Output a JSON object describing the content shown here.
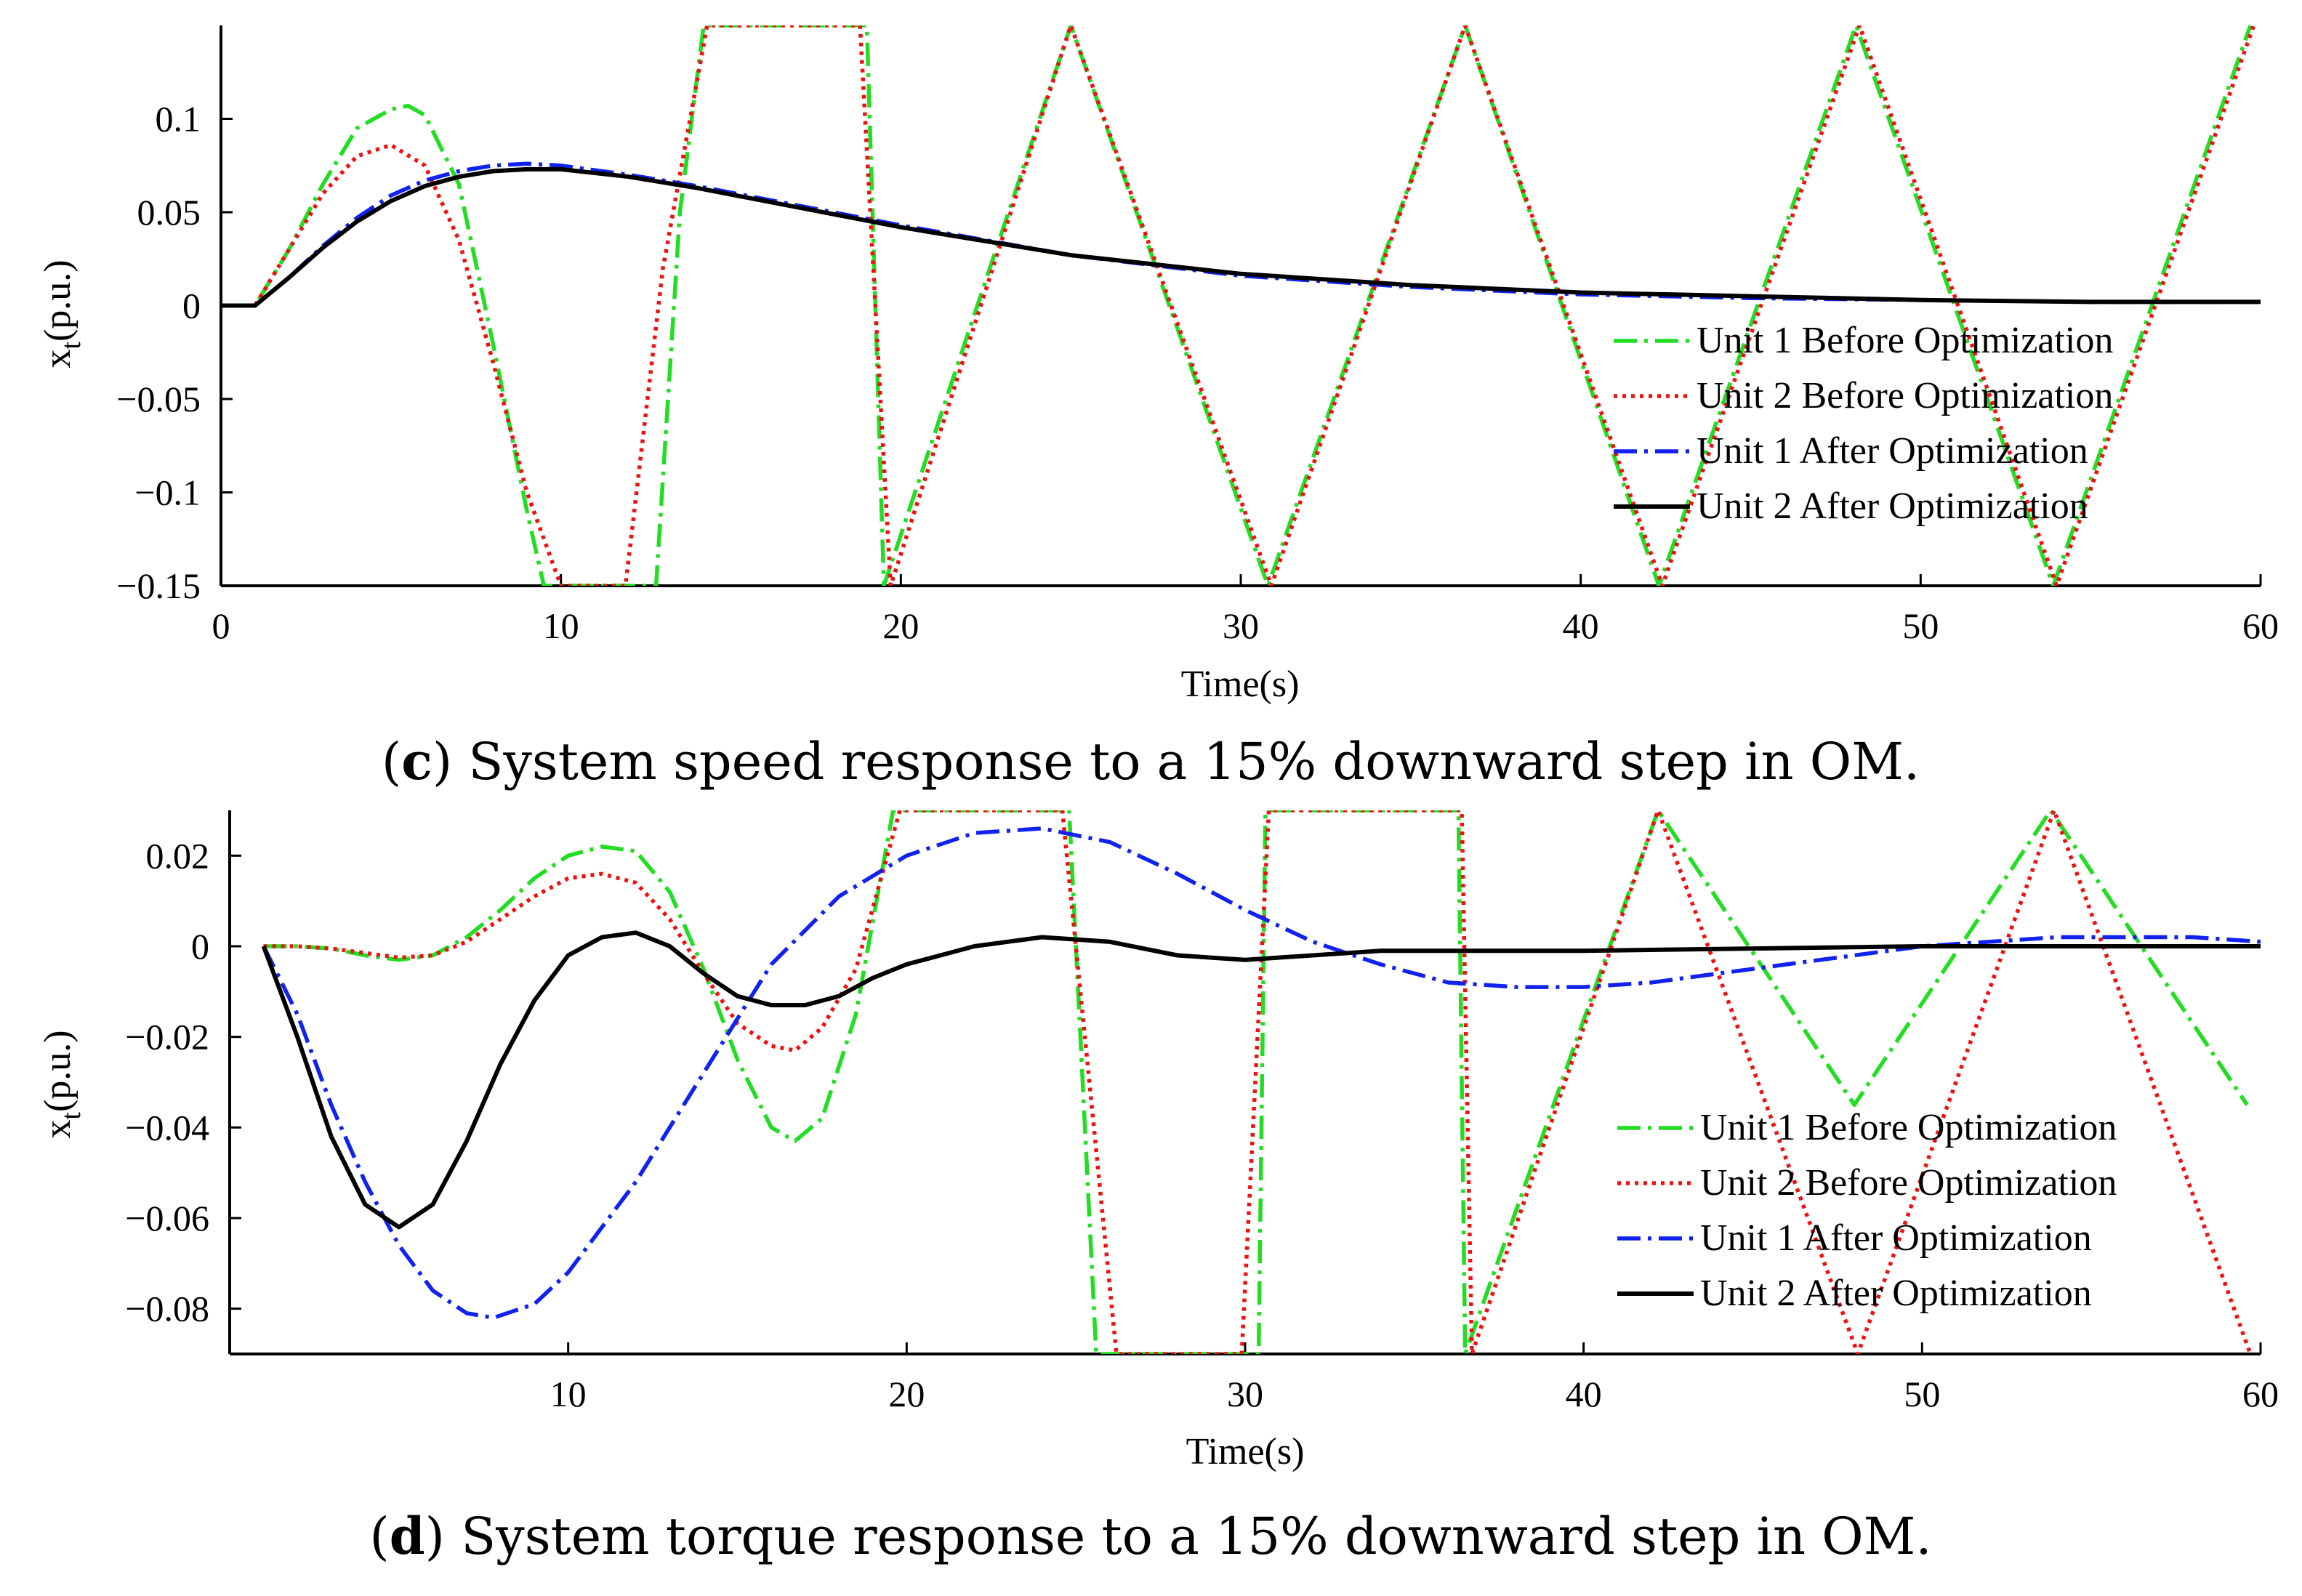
{
  "charts": [
    {
      "id": "c",
      "ylabel_main": "x",
      "ylabel_sub": "t",
      "ylabel_tail": "(p.u.)",
      "xlabel": "Time(s)",
      "caption_open": "(",
      "caption_letter": "c",
      "caption_rest": ") System speed response to a 15% downward step in OM."
    },
    {
      "id": "d",
      "ylabel_main": "x",
      "ylabel_sub": "t",
      "ylabel_tail": "(p.u.)",
      "xlabel": "Time(s)",
      "caption_open": "(",
      "caption_letter": "d",
      "caption_rest": ") System torque response to a 15% downward step in OM."
    }
  ],
  "chart_data": [
    {
      "type": "line",
      "xlabel": "Time(s)",
      "ylabel": "xt(p.u.)",
      "xlim": [
        0,
        60
      ],
      "ylim": [
        -0.15,
        0.15
      ],
      "xticks": [
        0,
        10,
        20,
        30,
        40,
        50,
        60
      ],
      "xtick_labels": [
        "0",
        "10",
        "20",
        "30",
        "40",
        "50",
        "60"
      ],
      "yticks": [
        -0.15,
        -0.1,
        -0.05,
        0,
        0.05,
        0.1
      ],
      "ytick_labels": [
        "−0.15",
        "−0.1",
        "−0.05",
        "0",
        "0.05",
        "0.1"
      ],
      "legend_position": "bottom-right",
      "series": [
        {
          "name": "Unit 1 Before Optimization",
          "color": "#22dd22",
          "style": "dash-dot",
          "x": [
            0,
            1,
            2,
            3,
            4,
            5,
            5.5,
            6,
            7,
            8,
            9,
            9.5,
            12.8,
            13.5,
            14.2,
            19.0,
            19.5,
            25.0,
            30.8,
            36.6,
            42.3,
            48.1,
            53.9,
            59.7
          ],
          "y": [
            0,
            0,
            0.03,
            0.065,
            0.095,
            0.105,
            0.107,
            0.102,
            0.065,
            -0.02,
            -0.11,
            -0.15,
            -0.15,
            0.05,
            0.15,
            0.15,
            -0.15,
            0.15,
            -0.15,
            0.15,
            -0.15,
            0.15,
            -0.15,
            0.15
          ]
        },
        {
          "name": "Unit 2 Before Optimization",
          "color": "#ee1111",
          "style": "dotted",
          "x": [
            0,
            1,
            2,
            3,
            4,
            5,
            6,
            7,
            8,
            9,
            10,
            11.9,
            13.0,
            14.3,
            18.8,
            19.7,
            25.0,
            30.9,
            36.6,
            42.4,
            48.2,
            54.0,
            59.8
          ],
          "y": [
            0,
            0,
            0.03,
            0.06,
            0.08,
            0.086,
            0.075,
            0.035,
            -0.03,
            -0.1,
            -0.15,
            -0.15,
            0.02,
            0.15,
            0.15,
            -0.15,
            0.15,
            -0.15,
            0.15,
            -0.15,
            0.15,
            -0.15,
            0.15
          ]
        },
        {
          "name": "Unit 1 After Optimization",
          "color": "#1122ee",
          "style": "dash-dot",
          "x": [
            0,
            1,
            2,
            3,
            4,
            5,
            6,
            7,
            8,
            9,
            10,
            12,
            14,
            16,
            18,
            20,
            25,
            30,
            35,
            40,
            45,
            50,
            55,
            60
          ],
          "y": [
            0,
            0,
            0.015,
            0.032,
            0.047,
            0.059,
            0.067,
            0.072,
            0.075,
            0.076,
            0.075,
            0.07,
            0.064,
            0.057,
            0.05,
            0.043,
            0.027,
            0.016,
            0.01,
            0.006,
            0.004,
            0.003,
            0.002,
            0.002
          ]
        },
        {
          "name": "Unit 2 After Optimization",
          "color": "#000000",
          "style": "solid",
          "x": [
            0,
            1,
            2,
            3,
            4,
            5,
            6,
            7,
            8,
            9,
            10,
            12,
            14,
            16,
            18,
            20,
            25,
            30,
            35,
            40,
            45,
            50,
            55,
            60
          ],
          "y": [
            0,
            0,
            0.015,
            0.031,
            0.045,
            0.056,
            0.064,
            0.069,
            0.072,
            0.073,
            0.073,
            0.069,
            0.063,
            0.056,
            0.049,
            0.042,
            0.027,
            0.017,
            0.011,
            0.007,
            0.005,
            0.003,
            0.002,
            0.002
          ]
        }
      ]
    },
    {
      "type": "line",
      "xlabel": "Time(s)",
      "ylabel": "xt(p.u.)",
      "xlim": [
        0,
        60
      ],
      "ylim": [
        -0.09,
        0.03
      ],
      "xticks": [
        10,
        20,
        30,
        40,
        50,
        60
      ],
      "xtick_labels": [
        "10",
        "20",
        "30",
        "40",
        "50",
        "60"
      ],
      "yticks": [
        -0.08,
        -0.06,
        -0.04,
        -0.02,
        0,
        0.02
      ],
      "ytick_labels": [
        "−0.08",
        "−0.06",
        "−0.04",
        "−0.02",
        "0",
        "0.02"
      ],
      "legend_position": "bottom-right",
      "series": [
        {
          "name": "Unit 1 Before Optimization",
          "color": "#22dd22",
          "style": "dash-dot",
          "x": [
            1,
            2,
            3,
            4,
            5,
            6,
            7,
            8,
            9,
            10,
            11,
            12,
            13,
            14,
            15,
            16,
            16.7,
            17.5,
            18.5,
            19.6,
            24.8,
            25.6,
            30.4,
            30.6,
            36.3,
            36.5,
            42.2,
            48.0,
            53.8,
            59.6
          ],
          "y": [
            0,
            0,
            -0.0005,
            -0.002,
            -0.003,
            -0.002,
            0.002,
            0.008,
            0.015,
            0.02,
            0.022,
            0.021,
            0.012,
            -0.005,
            -0.025,
            -0.04,
            -0.043,
            -0.038,
            -0.015,
            0.03,
            0.03,
            -0.09,
            -0.09,
            0.03,
            0.03,
            -0.09,
            0.03,
            -0.035,
            0.03,
            -0.035
          ]
        },
        {
          "name": "Unit 2 Before Optimization",
          "color": "#ee1111",
          "style": "dotted",
          "x": [
            1,
            2,
            3,
            4,
            5,
            6,
            7,
            8,
            9,
            10,
            11,
            12,
            13,
            14,
            15,
            16,
            16.7,
            17.5,
            18.5,
            19.8,
            24.6,
            26.2,
            29.9,
            30.7,
            36.4,
            36.7,
            42.2,
            48.1,
            53.9,
            59.7
          ],
          "y": [
            0,
            0,
            -0.0005,
            -0.0015,
            -0.0025,
            -0.002,
            0.001,
            0.006,
            0.011,
            0.015,
            0.016,
            0.014,
            0.006,
            -0.006,
            -0.017,
            -0.022,
            -0.023,
            -0.018,
            -0.005,
            0.03,
            0.03,
            -0.09,
            -0.09,
            0.03,
            0.03,
            -0.09,
            0.03,
            -0.09,
            0.03,
            -0.09
          ]
        },
        {
          "name": "Unit 1 After Optimization",
          "color": "#1122ee",
          "style": "dash-dot",
          "x": [
            1,
            2,
            3,
            4,
            5,
            6,
            7,
            7.8,
            9,
            10,
            12,
            14,
            16,
            18,
            20,
            22,
            24,
            26,
            28,
            30,
            32,
            34,
            36,
            38,
            40,
            42,
            44,
            46,
            48,
            50,
            52,
            54,
            56,
            58,
            60
          ],
          "y": [
            0,
            -0.015,
            -0.035,
            -0.052,
            -0.066,
            -0.076,
            -0.081,
            -0.082,
            -0.079,
            -0.072,
            -0.052,
            -0.028,
            -0.004,
            0.011,
            0.02,
            0.025,
            0.026,
            0.023,
            0.016,
            0.008,
            0.001,
            -0.004,
            -0.008,
            -0.009,
            -0.009,
            -0.008,
            -0.006,
            -0.004,
            -0.002,
            0.0,
            0.001,
            0.002,
            0.002,
            0.002,
            0.001
          ]
        },
        {
          "name": "Unit 2 After Optimization",
          "color": "#000000",
          "style": "solid",
          "x": [
            1,
            2,
            3,
            4,
            5,
            6,
            7,
            8,
            9,
            10,
            11,
            12,
            13,
            14,
            15,
            16,
            17,
            18,
            19,
            20,
            22,
            24,
            26,
            28,
            30,
            32,
            34,
            36,
            40,
            45,
            50,
            55,
            60
          ],
          "y": [
            0,
            -0.02,
            -0.042,
            -0.057,
            -0.062,
            -0.057,
            -0.043,
            -0.026,
            -0.012,
            -0.002,
            0.002,
            0.003,
            0.0,
            -0.006,
            -0.011,
            -0.013,
            -0.013,
            -0.011,
            -0.007,
            -0.004,
            0.0,
            0.002,
            0.001,
            -0.002,
            -0.003,
            -0.002,
            -0.001,
            -0.001,
            -0.001,
            -0.0005,
            0,
            0,
            0
          ]
        }
      ]
    }
  ]
}
